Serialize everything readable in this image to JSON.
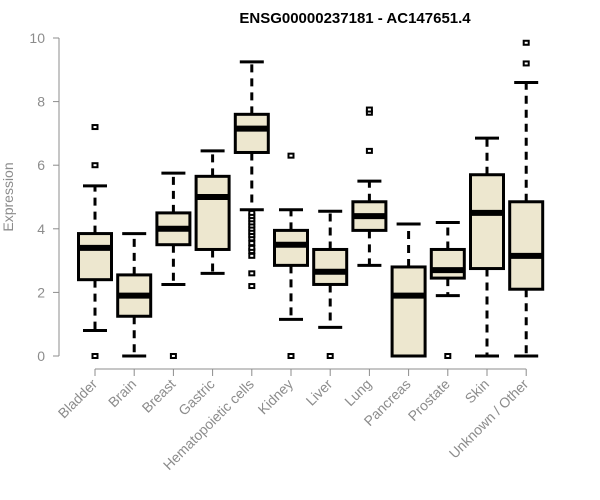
{
  "chart_data": {
    "type": "box",
    "title": "ENSG00000237181 - AC147651.4",
    "xlabel": "",
    "ylabel": "Expression",
    "ylim": [
      0,
      10
    ],
    "yticks": [
      0,
      2,
      4,
      6,
      8,
      10
    ],
    "grid": false,
    "colors": {
      "box_fill": "#ede7cf",
      "stroke": "#000000",
      "axis": "#8c8c8c",
      "label": "#8c8c8c"
    },
    "categories": [
      "Bladder",
      "Brain",
      "Breast",
      "Gastric",
      "Hematopoietic cells",
      "Kidney",
      "Liver",
      "Lung",
      "Pancreas",
      "Prostate",
      "Skin",
      "Unknown / Other"
    ],
    "boxes": [
      {
        "whisker_low": 0.8,
        "q1": 2.4,
        "median": 3.4,
        "q3": 3.85,
        "whisker_high": 5.35,
        "outliers": [
          0,
          6.0,
          7.2
        ]
      },
      {
        "whisker_low": 0,
        "q1": 1.25,
        "median": 1.9,
        "q3": 2.55,
        "whisker_high": 3.85,
        "outliers": []
      },
      {
        "whisker_low": 2.25,
        "q1": 3.5,
        "median": 4.0,
        "q3": 4.5,
        "whisker_high": 5.75,
        "outliers": [
          0
        ]
      },
      {
        "whisker_low": 2.6,
        "q1": 3.35,
        "median": 5.0,
        "q3": 5.65,
        "whisker_high": 6.45,
        "outliers": []
      },
      {
        "whisker_low": 4.6,
        "q1": 6.4,
        "median": 7.15,
        "q3": 7.6,
        "whisker_high": 9.25,
        "outliers": [
          2.2,
          2.6,
          3.15,
          3.3,
          3.4,
          3.55,
          3.7,
          3.8,
          3.9,
          4.0,
          4.1,
          4.2,
          4.3,
          4.4,
          4.5
        ]
      },
      {
        "whisker_low": 1.15,
        "q1": 2.85,
        "median": 3.5,
        "q3": 3.95,
        "whisker_high": 4.6,
        "outliers": [
          0,
          6.3
        ]
      },
      {
        "whisker_low": 0.9,
        "q1": 2.25,
        "median": 2.65,
        "q3": 3.35,
        "whisker_high": 4.55,
        "outliers": [
          0
        ]
      },
      {
        "whisker_low": 2.85,
        "q1": 3.95,
        "median": 4.4,
        "q3": 4.85,
        "whisker_high": 5.5,
        "outliers": [
          6.45,
          7.65,
          7.75
        ]
      },
      {
        "whisker_low": 0,
        "q1": 0,
        "median": 1.9,
        "q3": 2.8,
        "whisker_high": 4.15,
        "outliers": []
      },
      {
        "whisker_low": 1.9,
        "q1": 2.45,
        "median": 2.7,
        "q3": 3.35,
        "whisker_high": 4.2,
        "outliers": [
          0
        ]
      },
      {
        "whisker_low": 0,
        "q1": 2.75,
        "median": 4.5,
        "q3": 5.7,
        "whisker_high": 6.85,
        "outliers": []
      },
      {
        "whisker_low": 0,
        "q1": 2.1,
        "median": 3.15,
        "q3": 4.85,
        "whisker_high": 8.6,
        "outliers": [
          9.2,
          9.85
        ]
      }
    ]
  }
}
